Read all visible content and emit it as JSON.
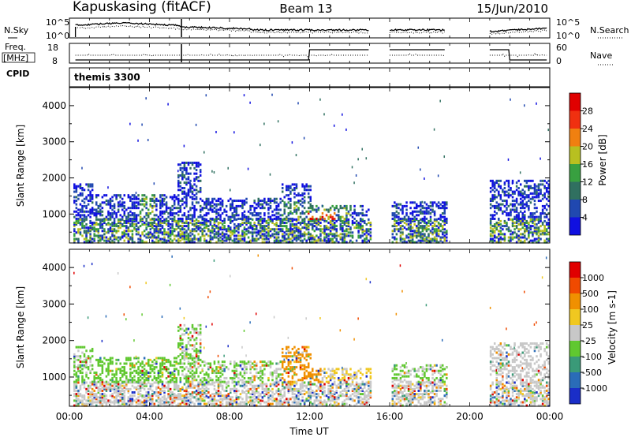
{
  "header": {
    "station": "Kapuskasing (fitACF)",
    "beam": "Beam 13",
    "date": "15/Jun/2010"
  },
  "noise_panel": {
    "left_label": "N.Sky",
    "right_label": "N.Search",
    "left_ticks": [
      "10^5",
      "10^0"
    ],
    "right_ticks": [
      "10^5",
      "10^0"
    ]
  },
  "freq_panel": {
    "left_label_line1": "Freq.",
    "left_label_line2": "[MHz]",
    "right_label": "Nave",
    "left_ticks": [
      "18",
      "8"
    ],
    "right_ticks": [
      "60",
      "0"
    ]
  },
  "cpid": {
    "label": "CPID",
    "value": "themis 3300"
  },
  "x_axis": {
    "title": "Time UT",
    "ticks": [
      "00:00",
      "04:00",
      "08:00",
      "12:00",
      "16:00",
      "20:00",
      "00:00"
    ]
  },
  "chart_data": [
    {
      "type": "heatmap",
      "panel": "power",
      "ylabel": "Slant Range [km]",
      "yticks": [
        1000,
        2000,
        3000,
        4000
      ],
      "ylim": [
        200,
        4500
      ],
      "xlim_hours": [
        0,
        24
      ],
      "colorbar": {
        "label": "Power [dB]",
        "tick_labels": [
          "4",
          "8",
          "12",
          "16",
          "20",
          "24",
          "28"
        ],
        "colors": [
          "#1010e0",
          "#2048b0",
          "#307060",
          "#38a040",
          "#b8c020",
          "#f08010",
          "#f03010",
          "#e00000"
        ]
      },
      "data_gaps_hours": [
        [
          15.0,
          16.0
        ],
        [
          18.8,
          21.0
        ]
      ]
    },
    {
      "type": "heatmap",
      "panel": "velocity",
      "ylabel": "Slant Range [km]",
      "yticks": [
        1000,
        2000,
        3000,
        4000
      ],
      "ylim": [
        200,
        4500
      ],
      "xlim_hours": [
        0,
        24
      ],
      "colorbar": {
        "label": "Velocity [m s-1]",
        "tick_labels": [
          "1000",
          "500",
          "100",
          "25",
          "-25",
          "-100",
          "-500",
          "-1000"
        ],
        "colors": [
          "#1a2ec8",
          "#2a6cb8",
          "#3a9a78",
          "#60c830",
          "#c8c8c8",
          "#f0c820",
          "#f09000",
          "#f04a00",
          "#e00000"
        ]
      },
      "data_gaps_hours": [
        [
          15.0,
          16.0
        ],
        [
          18.8,
          21.0
        ]
      ]
    }
  ]
}
